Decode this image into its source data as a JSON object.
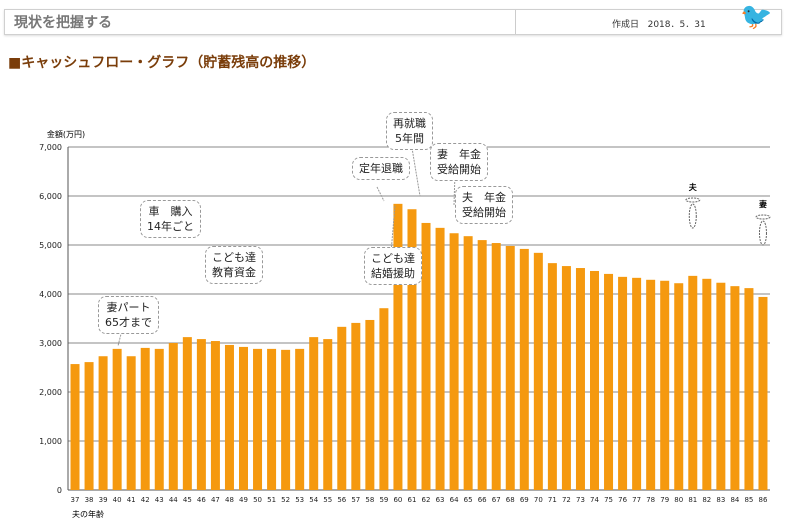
{
  "header": {
    "title": "現状を把握する",
    "date_label": "作成日",
    "date": "2018．5．31"
  },
  "section_title": "■キャッシュフロー・グラフ（貯蓄残高の推移）",
  "annotations": [
    {
      "text": "再就職\n5年間",
      "age": 60
    },
    {
      "text": "定年退職",
      "age": 60
    },
    {
      "text": "妻　年金\n受給開始",
      "age": 64
    },
    {
      "text": "夫　年金\n受給開始",
      "age": 65
    },
    {
      "text": "車　購入\n14年ごと",
      "age": null
    },
    {
      "text": "こども達\n教育資金",
      "age": null
    },
    {
      "text": "こども達\n結婚援助",
      "age": 61
    },
    {
      "text": "妻パート\n65才まで",
      "age": 40
    }
  ],
  "markers": {
    "husband": "夫",
    "wife": "妻"
  },
  "chart_data": {
    "type": "bar",
    "ylabel": "金額(万円)",
    "xlabel": "夫の年齢",
    "ylim": [
      0,
      7000
    ],
    "yticks": [
      "0",
      "1,000",
      "2,000",
      "3,000",
      "4,000",
      "5,000",
      "6,000",
      "7,000"
    ],
    "grid": true,
    "color": "#f5990f",
    "categories": [
      "37",
      "38",
      "39",
      "40",
      "41",
      "42",
      "43",
      "44",
      "45",
      "46",
      "47",
      "48",
      "49",
      "50",
      "51",
      "52",
      "53",
      "54",
      "55",
      "56",
      "57",
      "58",
      "59",
      "60",
      "61",
      "62",
      "63",
      "64",
      "65",
      "66",
      "67",
      "68",
      "69",
      "70",
      "71",
      "72",
      "73",
      "74",
      "75",
      "76",
      "77",
      "78",
      "79",
      "80",
      "81",
      "82",
      "83",
      "84",
      "85",
      "86"
    ],
    "values": [
      2570,
      2610,
      2730,
      2880,
      2730,
      2900,
      2880,
      3000,
      3120,
      3080,
      3040,
      2960,
      2920,
      2880,
      2880,
      2860,
      2880,
      3120,
      3080,
      3330,
      3410,
      3470,
      3710,
      5840,
      5730,
      5450,
      5350,
      5240,
      5180,
      5100,
      5040,
      4980,
      4920,
      4840,
      4630,
      4570,
      4530,
      4470,
      4410,
      4350,
      4330,
      4290,
      4270,
      4220,
      4370,
      4310,
      4230,
      4160,
      4120,
      3940
    ]
  }
}
